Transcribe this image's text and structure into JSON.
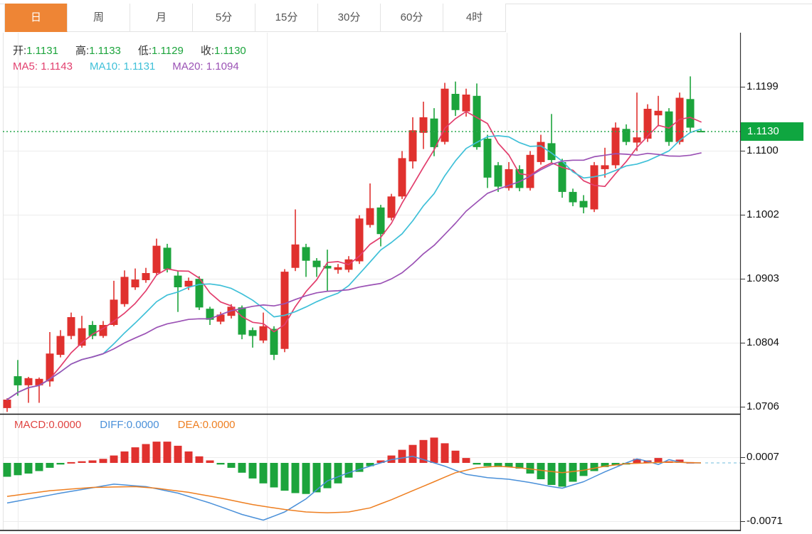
{
  "tabs": {
    "items": [
      {
        "label": "日",
        "selected": true
      },
      {
        "label": "周",
        "selected": false
      },
      {
        "label": "月",
        "selected": false
      },
      {
        "label": "5分",
        "selected": false
      },
      {
        "label": "15分",
        "selected": false
      },
      {
        "label": "30分",
        "selected": false
      },
      {
        "label": "60分",
        "selected": false
      },
      {
        "label": "4时",
        "selected": false
      }
    ]
  },
  "readout": {
    "ohlc": [
      {
        "label": "开:",
        "value": "1.1131"
      },
      {
        "label": "高:",
        "value": "1.1133"
      },
      {
        "label": "低:",
        "value": "1.1129"
      },
      {
        "label": "收:",
        "value": "1.1130"
      }
    ],
    "ma": [
      {
        "label": "MA5:",
        "value": "1.1143",
        "color": "#e23e6d"
      },
      {
        "label": "MA10:",
        "value": "1.1131",
        "color": "#3fc0d8"
      },
      {
        "label": "MA20:",
        "value": "1.1094",
        "color": "#9b52b5"
      }
    ]
  },
  "macd_readout": [
    {
      "label": "MACD:",
      "value": "0.0000",
      "color": "#e04340"
    },
    {
      "label": "DIFF:",
      "value": "0.0000",
      "color": "#4a90d9"
    },
    {
      "label": "DEA:",
      "value": "0.0000",
      "color": "#ee7f21"
    }
  ],
  "price_axis": {
    "labels": [
      "1.1199",
      "1.1100",
      "1.1002",
      "1.0903",
      "1.0804",
      "1.0706"
    ],
    "current_price_label": "1.1130"
  },
  "macd_axis": {
    "top": "0.0007",
    "bottom": "-0.0071"
  },
  "colors": {
    "up": "#e0312e",
    "down": "#1ca43c",
    "badge": "#0fa640",
    "value_green": "#1ca43c",
    "ma5": "#e23e6d",
    "ma10": "#3fc0d8",
    "ma20": "#9b52b5",
    "diff": "#4a90d9",
    "dea": "#ee7f21",
    "tab_accent": "#ee8535",
    "grid": "#ececec",
    "axis_line": "#333333",
    "dotted_price": "#2aa84f",
    "zero_dash": "#9fd4e8"
  },
  "chart_data": {
    "type": "candlestick+macd",
    "price_panel": {
      "ylim": [
        1.0706,
        1.1199
      ],
      "yticks": [
        1.1199,
        1.11,
        1.1002,
        1.0903,
        1.0804,
        1.0706
      ],
      "current_price": 1.113,
      "ma_periods": [
        5,
        10,
        20
      ],
      "grid": true,
      "candles_ohlc": [
        [
          1.0704,
          1.0719,
          1.0698,
          1.0717
        ],
        [
          1.0753,
          1.0778,
          1.0723,
          1.0739
        ],
        [
          1.0739,
          1.0752,
          1.0712,
          1.075
        ],
        [
          1.0739,
          1.0751,
          1.0712,
          1.0749
        ],
        [
          1.0745,
          1.0821,
          1.0737,
          1.0788
        ],
        [
          1.0786,
          1.0824,
          1.0782,
          1.0815
        ],
        [
          1.0815,
          1.0851,
          1.081,
          1.0844
        ],
        [
          1.08,
          1.0846,
          1.0797,
          1.0827
        ],
        [
          1.0832,
          1.0838,
          1.081,
          1.0815
        ],
        [
          1.0815,
          1.0838,
          1.0812,
          1.0832
        ],
        [
          1.0832,
          1.09,
          1.083,
          1.0871
        ],
        [
          1.0864,
          1.0916,
          1.086,
          1.0906
        ],
        [
          1.089,
          1.0919,
          1.0886,
          1.0902
        ],
        [
          1.0901,
          1.092,
          1.0897,
          1.0912
        ],
        [
          1.0912,
          1.0965,
          1.0908,
          1.0954
        ],
        [
          1.0951,
          1.0957,
          1.0913,
          1.0918
        ],
        [
          1.0908,
          1.0915,
          1.0852,
          1.089
        ],
        [
          1.0891,
          1.0905,
          1.0886,
          1.09
        ],
        [
          1.0903,
          1.0907,
          1.0855,
          1.0859
        ],
        [
          1.0857,
          1.086,
          1.0832,
          1.084
        ],
        [
          1.0837,
          1.0852,
          1.0833,
          1.0848
        ],
        [
          1.0846,
          1.0864,
          1.0842,
          1.086
        ],
        [
          1.0859,
          1.0862,
          1.081,
          1.0817
        ],
        [
          1.0824,
          1.0828,
          1.0797,
          1.0815
        ],
        [
          1.0808,
          1.0851,
          1.0804,
          1.083
        ],
        [
          1.0826,
          1.083,
          1.0778,
          1.0786
        ],
        [
          1.0795,
          1.0918,
          1.079,
          1.0914
        ],
        [
          1.092,
          1.101,
          1.0915,
          1.0956
        ],
        [
          1.0952,
          1.0957,
          1.0906,
          1.0931
        ],
        [
          1.0931,
          1.0935,
          1.0906,
          1.0921
        ],
        [
          1.0923,
          1.0948,
          1.0884,
          1.0919
        ],
        [
          1.0917,
          1.0926,
          1.0911,
          1.0921
        ],
        [
          1.0917,
          1.0938,
          1.0913,
          1.0933
        ],
        [
          1.093,
          1.1001,
          1.0926,
          1.0996
        ],
        [
          1.0986,
          1.105,
          1.0982,
          1.1012
        ],
        [
          1.1013,
          1.1017,
          1.0953,
          1.0972
        ],
        [
          1.0997,
          1.1034,
          1.0993,
          1.103
        ],
        [
          1.103,
          1.11,
          1.1026,
          1.1089
        ],
        [
          1.1084,
          1.1152,
          1.1073,
          1.1132
        ],
        [
          1.1128,
          1.1176,
          1.1103,
          1.1152
        ],
        [
          1.115,
          1.1166,
          1.1092,
          1.1106
        ],
        [
          1.1114,
          1.1205,
          1.111,
          1.1196
        ],
        [
          1.1188,
          1.1207,
          1.1154,
          1.1163
        ],
        [
          1.1161,
          1.1196,
          1.1153,
          1.1187
        ],
        [
          1.1185,
          1.1204,
          1.1102,
          1.1106
        ],
        [
          1.1119,
          1.1125,
          1.1043,
          1.1059
        ],
        [
          1.1078,
          1.1083,
          1.1037,
          1.1045
        ],
        [
          1.1043,
          1.1083,
          1.1039,
          1.1072
        ],
        [
          1.1072,
          1.1078,
          1.1038,
          1.1043
        ],
        [
          1.1043,
          1.11,
          1.1039,
          1.1094
        ],
        [
          1.1083,
          1.1125,
          1.1079,
          1.1114
        ],
        [
          1.1112,
          1.1157,
          1.1082,
          1.1086
        ],
        [
          1.1083,
          1.1088,
          1.1028,
          1.1037
        ],
        [
          1.1037,
          1.1042,
          1.1015,
          1.1021
        ],
        [
          1.1023,
          1.1032,
          1.1004,
          1.1013
        ],
        [
          1.101,
          1.1083,
          1.1006,
          1.1078
        ],
        [
          1.1072,
          1.1105,
          1.1059,
          1.1078
        ],
        [
          1.1078,
          1.1144,
          1.1073,
          1.1136
        ],
        [
          1.1134,
          1.1141,
          1.1109,
          1.1114
        ],
        [
          1.1113,
          1.119,
          1.11,
          1.1121
        ],
        [
          1.1119,
          1.1172,
          1.1114,
          1.1165
        ],
        [
          1.1155,
          1.1185,
          1.1138,
          1.1162
        ],
        [
          1.1161,
          1.1166,
          1.1108,
          1.1114
        ],
        [
          1.1114,
          1.119,
          1.111,
          1.1182
        ],
        [
          1.118,
          1.1215,
          1.1131,
          1.1136
        ],
        [
          1.1131,
          1.1133,
          1.1129,
          1.113
        ]
      ]
    },
    "macd_panel": {
      "yticks": [
        0.0007,
        -0.0071
      ],
      "hist": [
        -0.0017,
        -0.0015,
        -0.0013,
        -0.001,
        -0.0006,
        -0.0002,
        0.0001,
        0.0002,
        0.0003,
        0.0005,
        0.0009,
        0.0014,
        0.0019,
        0.0023,
        0.0026,
        0.0026,
        0.0021,
        0.0014,
        0.0008,
        0.0003,
        -0.0002,
        -0.0006,
        -0.0012,
        -0.0019,
        -0.0025,
        -0.003,
        -0.0034,
        -0.0037,
        -0.0038,
        -0.0036,
        -0.0031,
        -0.0025,
        -0.0018,
        -0.0011,
        -0.0004,
        0.0003,
        0.0009,
        0.0016,
        0.0022,
        0.0028,
        0.0031,
        0.0024,
        0.0015,
        0.0006,
        -0.0002,
        -0.0004,
        -0.0005,
        -0.0005,
        -0.0007,
        -0.0013,
        -0.002,
        -0.0027,
        -0.0029,
        -0.0023,
        -0.0016,
        -0.001,
        -0.0005,
        -0.0003,
        -0.0002,
        0.0005,
        0.0003,
        0.0006,
        0.0002,
        0.0004,
        0.0001,
        0.0
      ],
      "diff_pts": [
        [
          0,
          -0.0049
        ],
        [
          5,
          -0.0037
        ],
        [
          10,
          -0.0026
        ],
        [
          13,
          -0.0029
        ],
        [
          16,
          -0.0037
        ],
        [
          19,
          -0.0049
        ],
        [
          22,
          -0.0063
        ],
        [
          24,
          -0.007
        ],
        [
          26,
          -0.006
        ],
        [
          28,
          -0.0044
        ],
        [
          30,
          -0.0022
        ],
        [
          32,
          -0.0012
        ],
        [
          34,
          -0.0004
        ],
        [
          36,
          0.0004
        ],
        [
          38,
          0.0008
        ],
        [
          40,
          0.0
        ],
        [
          41,
          -0.0004
        ],
        [
          43,
          -0.0014
        ],
        [
          45,
          -0.0018
        ],
        [
          47,
          -0.002
        ],
        [
          49,
          -0.0024
        ],
        [
          51,
          -0.0029
        ],
        [
          52,
          -0.0031
        ],
        [
          54,
          -0.0023
        ],
        [
          56,
          -0.0011
        ],
        [
          58,
          0.0
        ],
        [
          59,
          0.0005
        ],
        [
          60,
          0.0002
        ],
        [
          61,
          -0.0002
        ],
        [
          62,
          0.0004
        ],
        [
          63,
          0.0001
        ],
        [
          64,
          0.0
        ],
        [
          65,
          0.0
        ]
      ],
      "dea_pts": [
        [
          0,
          -0.0041
        ],
        [
          4,
          -0.0034
        ],
        [
          8,
          -0.003
        ],
        [
          12,
          -0.0029
        ],
        [
          14,
          -0.0031
        ],
        [
          17,
          -0.0036
        ],
        [
          20,
          -0.0043
        ],
        [
          23,
          -0.0051
        ],
        [
          26,
          -0.0057
        ],
        [
          28,
          -0.006
        ],
        [
          30,
          -0.0061
        ],
        [
          32,
          -0.006
        ],
        [
          34,
          -0.0055
        ],
        [
          36,
          -0.0045
        ],
        [
          38,
          -0.0034
        ],
        [
          40,
          -0.0023
        ],
        [
          42,
          -0.0012
        ],
        [
          44,
          -0.0006
        ],
        [
          46,
          -0.0004
        ],
        [
          48,
          -0.0006
        ],
        [
          50,
          -0.0009
        ],
        [
          52,
          -0.0012
        ],
        [
          54,
          -0.0009
        ],
        [
          56,
          -0.0004
        ],
        [
          58,
          -0.0001
        ],
        [
          60,
          0.0
        ],
        [
          62,
          0.0001
        ],
        [
          65,
          0.0
        ]
      ]
    }
  }
}
